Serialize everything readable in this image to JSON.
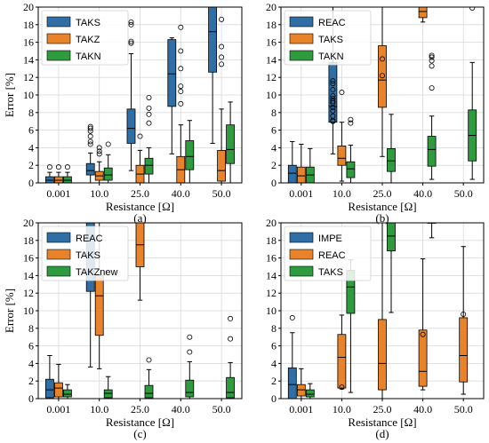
{
  "colors": {
    "blue": "#2f6fa6",
    "orange": "#e8832a",
    "green": "#2f9b3f",
    "grid": "#d9d9d9"
  },
  "chart_data": [
    {
      "type": "box",
      "panel_label": "(a)",
      "xlabel": "Resistance [Ω]",
      "ylabel": "Error [%]",
      "ylim": [
        0,
        20
      ],
      "yticks": [
        "0",
        "2",
        "4",
        "6",
        "8",
        "10",
        "12",
        "14",
        "16",
        "18",
        "20"
      ],
      "categories": [
        "0.001",
        "10.0",
        "25.0",
        "40.0",
        "50.0"
      ],
      "legend_position": "top-left",
      "grid": true,
      "series": [
        {
          "name": "TAKS",
          "color": "blue",
          "boxes": [
            {
              "whislo": 0,
              "q1": 0,
              "med": 0.3,
              "q3": 0.7,
              "whishi": 1.2,
              "fliers": [
                1.8
              ]
            },
            {
              "whislo": 0,
              "q1": 0.9,
              "med": 1.4,
              "q3": 2.2,
              "whishi": 3.4,
              "fliers": [
                4.4,
                4.7,
                5.3,
                5.9,
                6.2,
                6.4
              ]
            },
            {
              "whislo": 1.4,
              "q1": 4.5,
              "med": 6.2,
              "q3": 8.4,
              "whishi": 14.7,
              "fliers": [
                15.9,
                16.1,
                18.0,
                18.3
              ]
            },
            {
              "whislo": 3.3,
              "q1": 8.7,
              "med": 12.4,
              "q3": 16.3,
              "whishi": 16.5,
              "fliers": []
            },
            {
              "whislo": 4.5,
              "q1": 12.6,
              "med": 17.2,
              "q3": 20,
              "whishi": 20,
              "fliers": []
            }
          ]
        },
        {
          "name": "TAKZ",
          "color": "orange",
          "boxes": [
            {
              "whislo": 0,
              "q1": 0,
              "med": 0.3,
              "q3": 0.7,
              "whishi": 1.2,
              "fliers": [
                1.8
              ]
            },
            {
              "whislo": 0,
              "q1": 0.3,
              "med": 0.8,
              "q3": 1.3,
              "whishi": 2.4,
              "fliers": [
                3.3,
                3.6,
                4.0
              ]
            },
            {
              "whislo": 0,
              "q1": 0,
              "med": 1.0,
              "q3": 2.0,
              "whishi": 3.7,
              "fliers": [
                5.3
              ]
            },
            {
              "whislo": 0,
              "q1": 0,
              "med": 1.5,
              "q3": 3.0,
              "whishi": 6.6,
              "fliers": [
                9.0,
                10.4,
                11.0,
                13.0,
                15.0,
                17.7
              ]
            },
            {
              "whislo": 0,
              "q1": 0.2,
              "med": 1.4,
              "q3": 3.7,
              "whishi": 8.4,
              "fliers": [
                13.5,
                14.3,
                15.5,
                18.6
              ]
            }
          ]
        },
        {
          "name": "TAKN",
          "color": "green",
          "boxes": [
            {
              "whislo": 0,
              "q1": 0,
              "med": 0.3,
              "q3": 0.7,
              "whishi": 1.2,
              "fliers": [
                1.8
              ]
            },
            {
              "whislo": 0,
              "q1": 0.3,
              "med": 0.9,
              "q3": 1.7,
              "whishi": 3.2,
              "fliers": [
                4.4
              ]
            },
            {
              "whislo": 0,
              "q1": 1.0,
              "med": 2.0,
              "q3": 2.8,
              "whishi": 4.0,
              "fliers": [
                6.8,
                7.8,
                8.5,
                9.7
              ]
            },
            {
              "whislo": 0,
              "q1": 1.5,
              "med": 3.0,
              "q3": 4.8,
              "whishi": 7.1,
              "fliers": []
            },
            {
              "whislo": 0,
              "q1": 2.2,
              "med": 3.8,
              "q3": 6.6,
              "whishi": 9.2,
              "fliers": []
            }
          ]
        }
      ]
    },
    {
      "type": "box",
      "panel_label": "(b)",
      "xlabel": "Resistance [Ω]",
      "ylabel": "",
      "ylim": [
        0,
        20
      ],
      "yticks": [
        "0",
        "2",
        "4",
        "6",
        "8",
        "10",
        "12",
        "14",
        "16",
        "18",
        "20"
      ],
      "categories": [
        "0.001",
        "10.0",
        "25.0",
        "40.0",
        "50.0"
      ],
      "legend_position": "top-left",
      "grid": true,
      "series": [
        {
          "name": "REAC",
          "color": "blue",
          "boxes": [
            {
              "whislo": 0,
              "q1": 0,
              "med": 1.1,
              "q3": 2.0,
              "whishi": 4.7,
              "fliers": []
            },
            {
              "whislo": 3.3,
              "q1": 6.9,
              "med": 8.7,
              "q3": 13.7,
              "whishi": 20,
              "fliers": [
                7.0,
                7.1,
                7.6,
                8.2,
                8.6,
                9.1,
                9.3,
                9.6,
                9.9,
                10.6,
                11.3,
                11.6
              ]
            },
            null,
            null,
            null
          ]
        },
        {
          "name": "TAKS",
          "color": "orange",
          "boxes": [
            {
              "whislo": 0,
              "q1": 0,
              "med": 0.8,
              "q3": 1.8,
              "whishi": 4.4,
              "fliers": []
            },
            {
              "whislo": 0.2,
              "q1": 2.0,
              "med": 2.8,
              "q3": 4.2,
              "whishi": 6.9,
              "fliers": [
                10.3
              ]
            },
            {
              "whislo": 3.0,
              "q1": 8.6,
              "med": 11.7,
              "q3": 15.6,
              "whishi": 20,
              "fliers": [
                12.2,
                14.1
              ]
            },
            {
              "whislo": 18.3,
              "q1": 18.8,
              "med": 19.5,
              "q3": 20,
              "whishi": 20,
              "fliers": []
            },
            null
          ]
        },
        {
          "name": "TAKN",
          "color": "green",
          "boxes": [
            {
              "whislo": 0,
              "q1": 0,
              "med": 0.9,
              "q3": 1.8,
              "whishi": 3.9,
              "fliers": []
            },
            {
              "whislo": 0,
              "q1": 0.6,
              "med": 1.6,
              "q3": 2.4,
              "whishi": 4.3,
              "fliers": [
                6.8,
                7.2
              ]
            },
            {
              "whislo": 0,
              "q1": 1.3,
              "med": 2.5,
              "q3": 3.9,
              "whishi": 7.8,
              "fliers": []
            },
            {
              "whislo": 0.4,
              "q1": 1.9,
              "med": 3.8,
              "q3": 5.3,
              "whishi": 7.6,
              "fliers": [
                10.8,
                13.3,
                13.9,
                14.3,
                14.5
              ]
            },
            {
              "whislo": 0.4,
              "q1": 2.5,
              "med": 5.4,
              "q3": 8.3,
              "whishi": 13.7,
              "fliers": [
                19.9
              ]
            }
          ]
        }
      ]
    },
    {
      "type": "box",
      "panel_label": "(c)",
      "xlabel": "Resistance [Ω]",
      "ylabel": "Error [%]",
      "ylim": [
        0,
        20
      ],
      "yticks": [
        "0",
        "2",
        "4",
        "6",
        "8",
        "10",
        "12",
        "14",
        "16",
        "18",
        "20"
      ],
      "categories": [
        "0.001",
        "10.0",
        "25.0",
        "40.0",
        "50.0"
      ],
      "legend_position": "top-left",
      "grid": true,
      "series": [
        {
          "name": "REAC",
          "color": "blue",
          "boxes": [
            {
              "whislo": 0,
              "q1": 0.1,
              "med": 1.0,
              "q3": 2.2,
              "whishi": 4.9,
              "fliers": []
            },
            {
              "whislo": 3.6,
              "q1": 12.2,
              "med": 14.5,
              "q3": 20,
              "whishi": 20,
              "fliers": []
            },
            null,
            null,
            null
          ]
        },
        {
          "name": "TAKS",
          "color": "orange",
          "boxes": [
            {
              "whislo": 0,
              "q1": 0.2,
              "med": 1.2,
              "q3": 1.8,
              "whishi": 3.9,
              "fliers": []
            },
            {
              "whislo": 3.4,
              "q1": 7.2,
              "med": 11.7,
              "q3": 14.0,
              "whishi": 20,
              "fliers": []
            },
            {
              "whislo": 11.2,
              "q1": 15.0,
              "med": 17.5,
              "q3": 20,
              "whishi": 20,
              "fliers": []
            },
            null,
            null
          ]
        },
        {
          "name": "TAKZnew",
          "color": "green",
          "boxes": [
            {
              "whislo": 0,
              "q1": 0.2,
              "med": 0.5,
              "q3": 1.0,
              "whishi": 1.6,
              "fliers": []
            },
            {
              "whislo": 0,
              "q1": 0.1,
              "med": 0.6,
              "q3": 1.0,
              "whishi": 2.5,
              "fliers": []
            },
            {
              "whislo": 0,
              "q1": 0.1,
              "med": 0.6,
              "q3": 1.5,
              "whishi": 3.3,
              "fliers": [
                4.4
              ]
            },
            {
              "whislo": 0,
              "q1": 0.2,
              "med": 0.7,
              "q3": 2.1,
              "whishi": 4.2,
              "fliers": [
                5.3,
                7.0
              ]
            },
            {
              "whislo": 0,
              "q1": 0.1,
              "med": 0.7,
              "q3": 2.4,
              "whishi": 4.1,
              "fliers": [
                6.8,
                9.1
              ]
            }
          ]
        }
      ]
    },
    {
      "type": "box",
      "panel_label": "(d)",
      "xlabel": "Resistance [Ω]",
      "ylabel": "",
      "ylim": [
        0,
        20
      ],
      "yticks": [
        "0",
        "2",
        "4",
        "6",
        "8",
        "10",
        "12",
        "14",
        "16",
        "18",
        "20"
      ],
      "categories": [
        "0.001",
        "10.0",
        "25.0",
        "40.0",
        "50.0"
      ],
      "legend_position": "top-left",
      "grid": true,
      "series": [
        {
          "name": "IMPE",
          "color": "blue",
          "boxes": [
            {
              "whislo": 0,
              "q1": 0,
              "med": 1.6,
              "q3": 3.5,
              "whishi": 7.5,
              "fliers": [
                9.2
              ]
            },
            null,
            null,
            null,
            null
          ]
        },
        {
          "name": "REAC",
          "color": "orange",
          "boxes": [
            {
              "whislo": 0,
              "q1": 0.3,
              "med": 1.0,
              "q3": 1.6,
              "whishi": 3.4,
              "fliers": []
            },
            {
              "whislo": 1.1,
              "q1": 1.2,
              "med": 4.7,
              "q3": 7.3,
              "whishi": 9.5,
              "fliers": [
                1.3
              ]
            },
            {
              "whislo": 0,
              "q1": 1.0,
              "med": 4.0,
              "q3": 9.0,
              "whishi": 20,
              "fliers": []
            },
            {
              "whislo": 1.0,
              "q1": 1.4,
              "med": 3.1,
              "q3": 7.8,
              "whishi": 15.9,
              "fliers": [
                7.3
              ]
            },
            {
              "whislo": 0.5,
              "q1": 1.9,
              "med": 4.9,
              "q3": 9.2,
              "whishi": 17.3,
              "fliers": [
                9.6
              ]
            }
          ]
        },
        {
          "name": "TAKS",
          "color": "green",
          "boxes": [
            {
              "whislo": 0,
              "q1": 0.2,
              "med": 0.5,
              "q3": 1.0,
              "whishi": 1.7,
              "fliers": []
            },
            {
              "whislo": 0.7,
              "q1": 9.7,
              "med": 12.7,
              "q3": 14.6,
              "whishi": 15.8,
              "fliers": []
            },
            {
              "whislo": 9.8,
              "q1": 16.8,
              "med": 18.5,
              "q3": 20,
              "whishi": 20,
              "fliers": []
            },
            {
              "whislo": 18.3,
              "q1": 20,
              "med": 20,
              "q3": 20,
              "whishi": 20,
              "fliers": []
            },
            null
          ]
        }
      ]
    }
  ]
}
